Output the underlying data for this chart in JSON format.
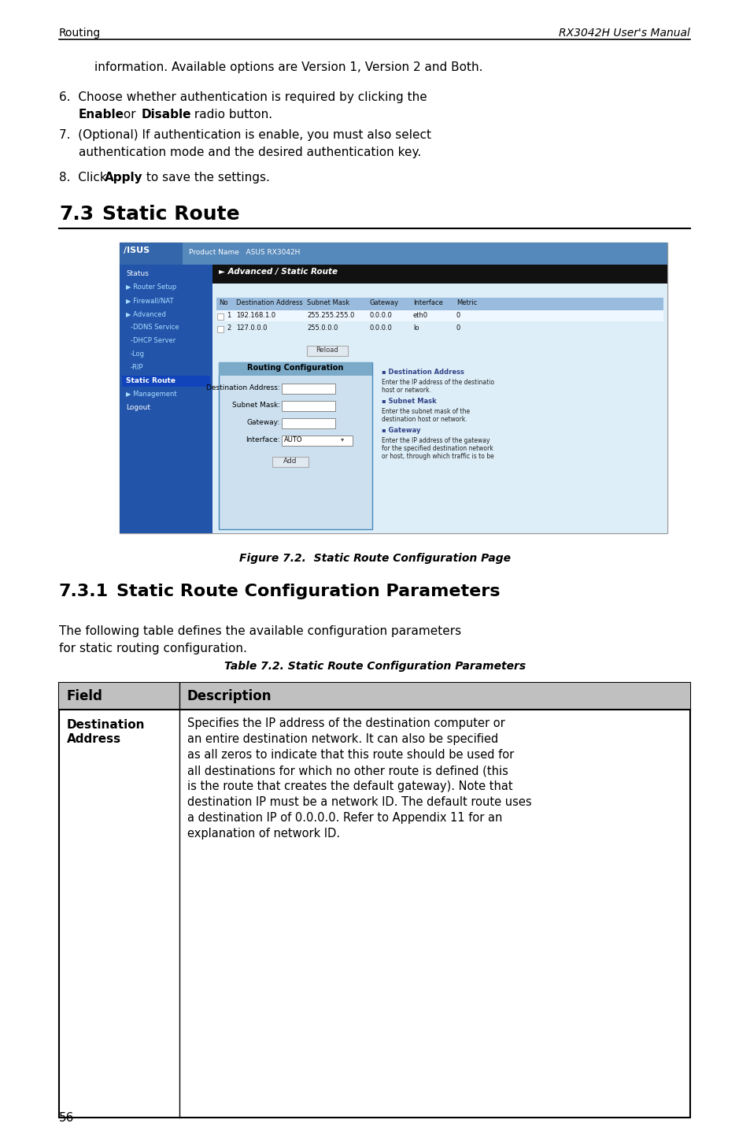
{
  "page_bg": "#ffffff",
  "header_left": "Routing",
  "header_right": "RX3042H User's Manual",
  "para_intro": "information. Available options are Version 1, Version 2 and Both.",
  "section_num": "7.3",
  "section_title": "Static Route",
  "fig_caption": "Figure 7.2.  Static Route Configuration Page",
  "subsection_num": "7.3.1",
  "subsection_title": "Static Route Configuration Parameters",
  "table_title": "Table 7.2. Static Route Configuration Parameters",
  "table_col1_header": "Field",
  "table_col2_header": "Description",
  "table_row1_col1_line1": "Destination",
  "table_row1_col1_line2": "Address",
  "table_row1_col2": [
    "Specifies the IP address of the destination computer or",
    "an entire destination network. It can also be specified",
    "as all zeros to indicate that this route should be used for",
    "all destinations for which no other route is defined (this",
    "is the route that creates the default gateway). Note that",
    "destination IP must be a network ID. The default route uses",
    "a destination IP of 0.0.0.0. Refer to Appendix 11 for an",
    "explanation of network ID."
  ],
  "footer_page": "56",
  "nav_items": [
    "Status",
    "Router Setup",
    "Firewall/NAT",
    "Advanced",
    "-DDNS Service",
    "-DHCP Server",
    "-Log",
    "-RIP",
    "Static Route",
    "Management",
    "Logout"
  ],
  "table_headers": [
    "No",
    "Destination Address",
    "Subnet Mask",
    "Gateway",
    "Interface",
    "Metric"
  ],
  "table_rows": [
    [
      "1",
      "192.168.1.0",
      "255.255.255.0",
      "0.0.0.0",
      "eth0",
      "0"
    ],
    [
      "2",
      "127.0.0.0",
      "255.0.0.0",
      "0.0.0.0",
      "lo",
      "0"
    ]
  ],
  "form_fields": [
    "Destination Address:",
    "Subnet Mask:",
    "Gateway:",
    "Interface:"
  ],
  "help_items": [
    {
      "title": "Destination Address",
      "desc": "Enter the IP address of the destinatio\nhost or network."
    },
    {
      "title": "Subnet Mask",
      "desc": "Enter the subnet mask of the\ndestination host or network."
    },
    {
      "title": "Gateway",
      "desc": "Enter the IP address of the gateway\nfor the specified destination network\nor host, through which traffic is to be"
    }
  ]
}
